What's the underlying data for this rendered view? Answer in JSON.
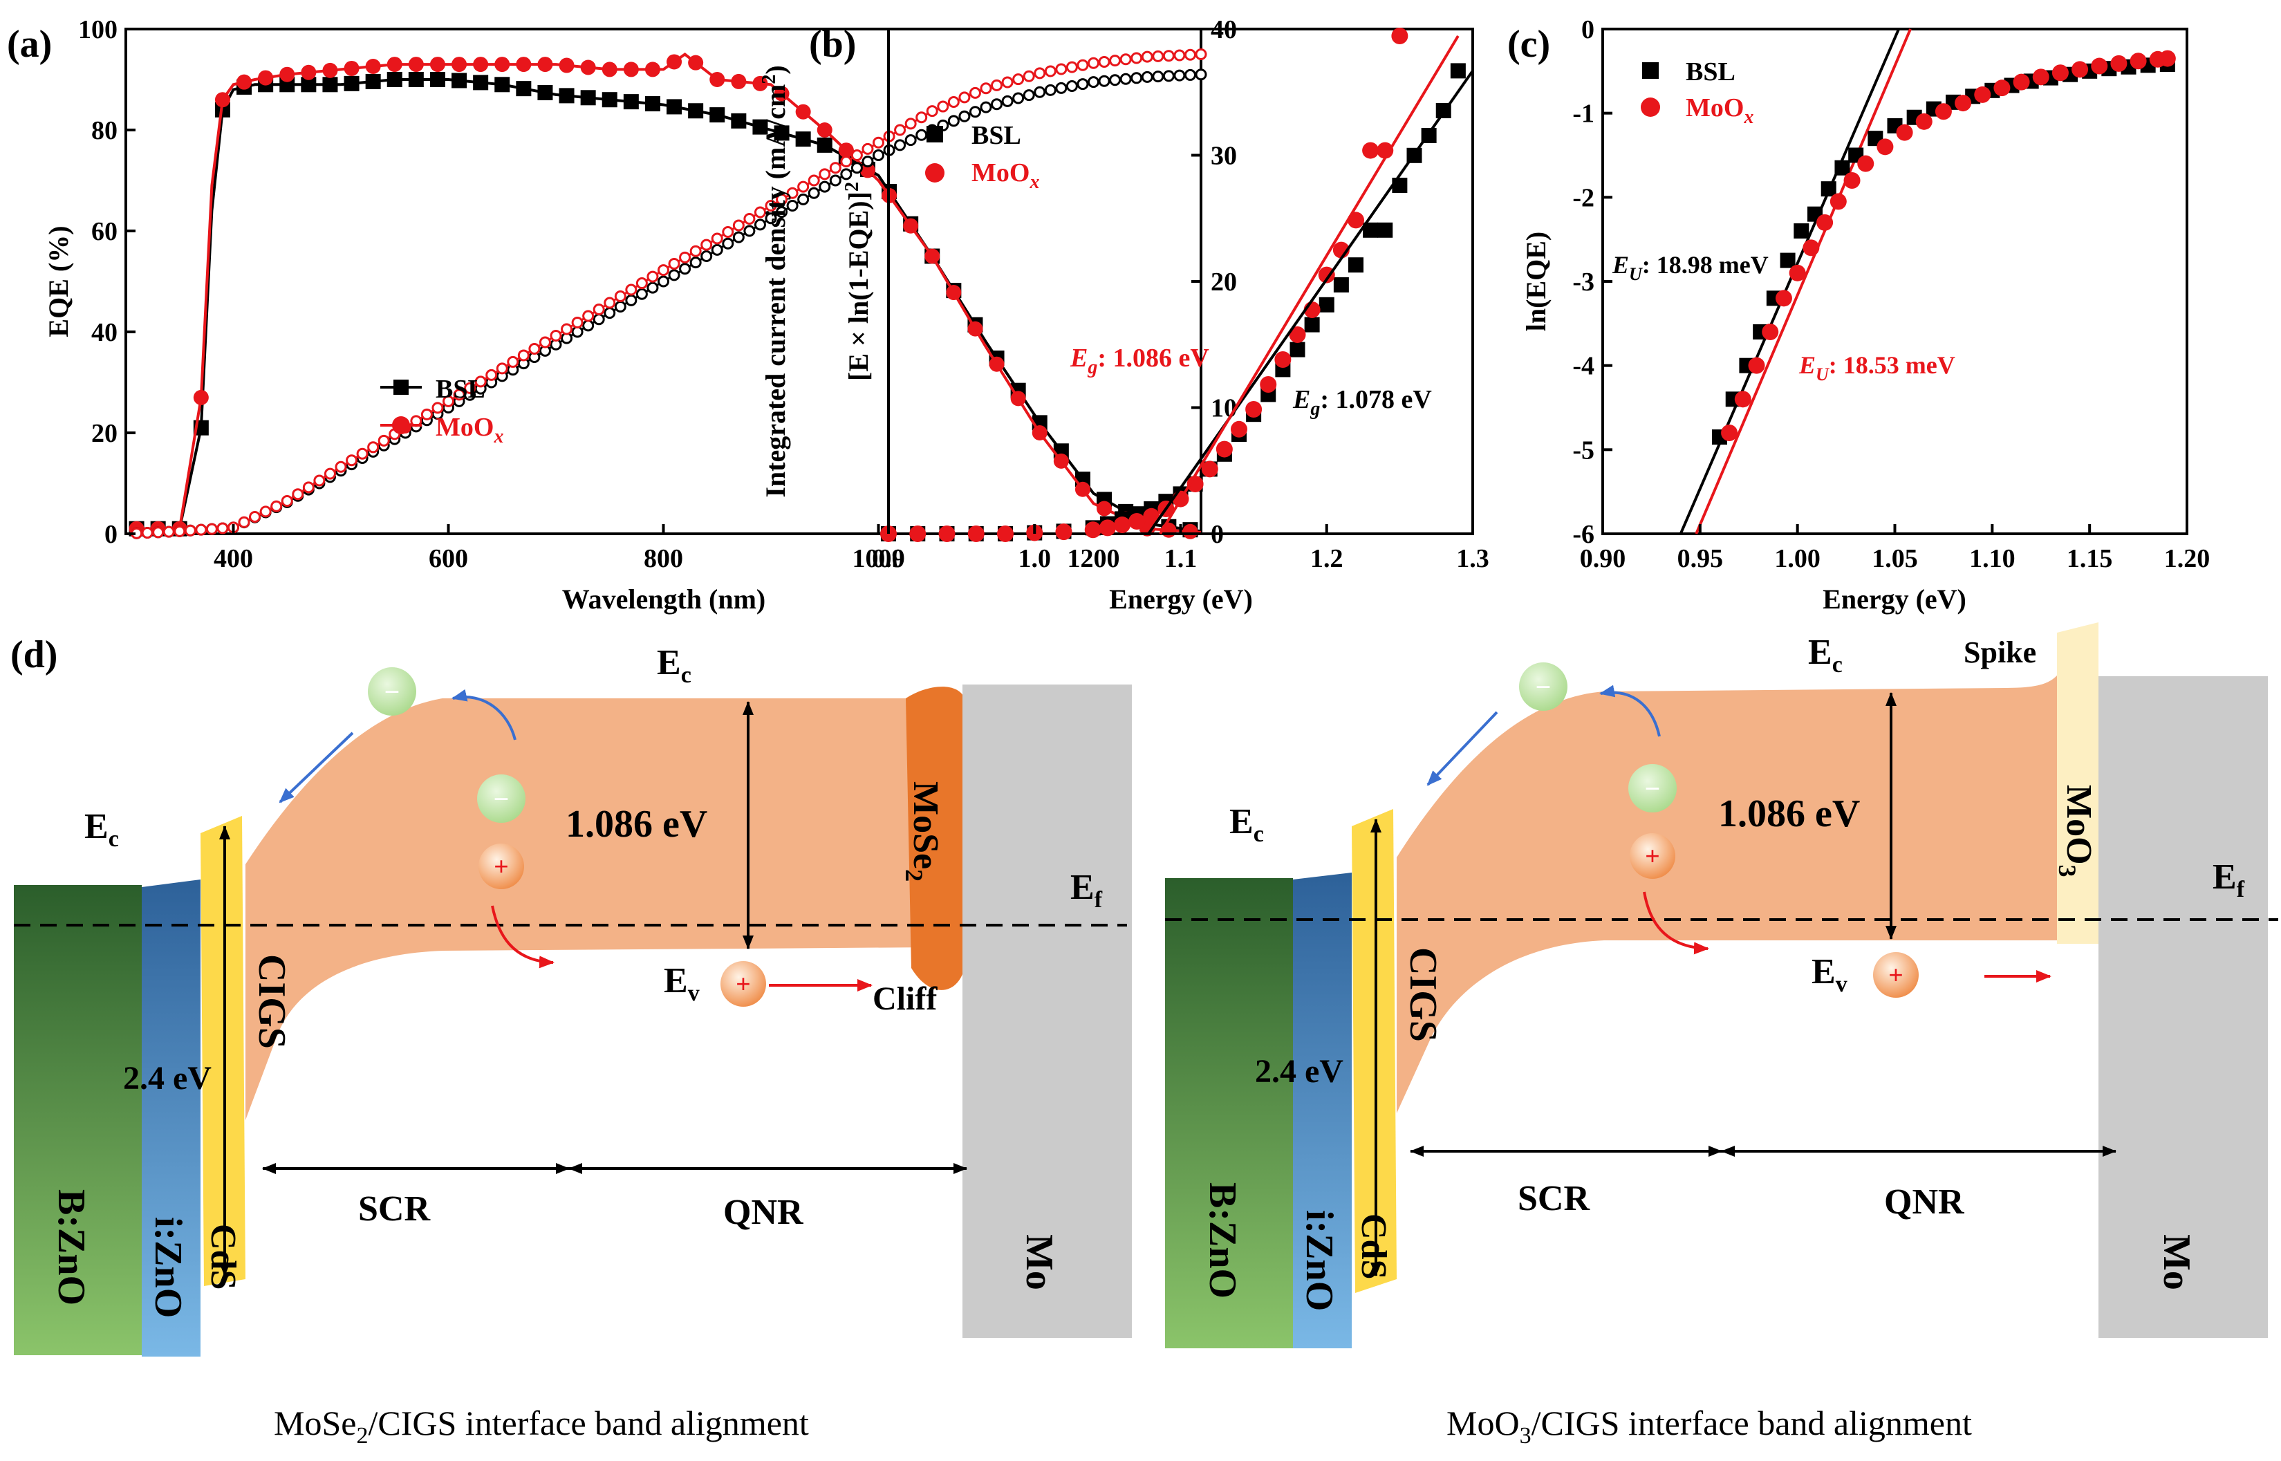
{
  "chart_data": [
    {
      "type": "scatter",
      "panel": "(a)",
      "xlabel": "Wavelength (nm)",
      "ylabel": "EQE (%)",
      "ylabel_right": "Integrated current density (mA/cm",
      "ylabel_right_sup": "2",
      "ylabel_right_close": ")",
      "xlim": [
        300,
        1300
      ],
      "ylim": [
        0,
        100
      ],
      "ylim_right": [
        0,
        40
      ],
      "xticks": [
        400,
        600,
        800,
        1000,
        1200
      ],
      "yticks": [
        0,
        20,
        40,
        60,
        80,
        100
      ],
      "yticks_right": [
        0,
        10,
        20,
        30,
        40
      ],
      "legend": [
        {
          "name": "BSL",
          "color": "#000000",
          "marker": "square"
        },
        {
          "name": "MoO",
          "sub": "x",
          "color": "#e8161b",
          "marker": "circle"
        }
      ],
      "series": [
        {
          "name": "BSL",
          "axis": "left",
          "x": [
            310,
            330,
            350,
            370,
            380,
            390,
            400,
            420,
            450,
            500,
            550,
            600,
            650,
            700,
            750,
            800,
            850,
            900,
            950,
            1000,
            1050,
            1100,
            1150,
            1200,
            1250,
            1300
          ],
          "values": [
            1,
            1,
            1,
            21,
            64,
            84,
            88,
            89,
            89,
            89,
            90,
            90,
            89,
            87,
            86,
            85,
            83,
            80,
            77,
            71,
            55,
            38,
            22,
            8,
            2,
            0.5
          ]
        },
        {
          "name": "MoO_x",
          "axis": "left",
          "x": [
            310,
            330,
            350,
            370,
            380,
            390,
            400,
            420,
            450,
            500,
            550,
            600,
            650,
            700,
            750,
            800,
            820,
            850,
            900,
            950,
            1000,
            1050,
            1100,
            1150,
            1200,
            1250,
            1300
          ],
          "values": [
            1,
            1,
            1,
            27,
            69,
            86,
            89,
            90,
            91,
            92,
            93,
            93,
            93,
            93,
            92,
            92,
            95,
            90,
            89,
            80,
            70,
            55,
            37,
            20,
            6,
            1,
            0.3
          ]
        },
        {
          "name": "BSL integrated",
          "axis": "right",
          "x": [
            300,
            350,
            400,
            450,
            500,
            550,
            600,
            650,
            700,
            750,
            800,
            850,
            900,
            950,
            1000,
            1050,
            1100,
            1150,
            1200,
            1250,
            1300
          ],
          "values": [
            0,
            0.2,
            0.5,
            2.5,
            5,
            7.5,
            10,
            12.5,
            15,
            17.5,
            20,
            22.5,
            25,
            27.5,
            30,
            32,
            33.8,
            35,
            35.8,
            36.2,
            36.4
          ]
        },
        {
          "name": "MoO_x integrated",
          "axis": "right",
          "x": [
            300,
            350,
            400,
            450,
            500,
            550,
            600,
            650,
            700,
            750,
            800,
            850,
            900,
            950,
            1000,
            1050,
            1100,
            1150,
            1200,
            1250,
            1300
          ],
          "values": [
            0,
            0.2,
            0.5,
            2.6,
            5.3,
            7.9,
            10.5,
            13.1,
            15.7,
            18.3,
            20.9,
            23.4,
            26,
            28.5,
            31,
            33.5,
            35.3,
            36.5,
            37.3,
            37.8,
            38
          ]
        }
      ]
    },
    {
      "type": "scatter",
      "panel": "(b)",
      "xlabel": "Energy (eV)",
      "ylabel": "[E × ln(1-EQE)]",
      "ylabel_sup": "2",
      "xlim": [
        0.9,
        1.3
      ],
      "ylim": [
        0,
        1
      ],
      "xticks": [
        0.9,
        1.0,
        1.1,
        1.2,
        1.3
      ],
      "legend": [
        {
          "name": "BSL",
          "color": "#000000",
          "marker": "square"
        },
        {
          "name": "MoO",
          "sub": "x",
          "color": "#e8161b",
          "marker": "circle"
        }
      ],
      "annotations": [
        {
          "text": "E",
          "sub": "g",
          "rest": ": 1.086 eV",
          "color": "#e8161b"
        },
        {
          "text": "E",
          "sub": "g",
          "rest": ": 1.078 eV",
          "color": "#000000"
        }
      ],
      "fit_lines": [
        {
          "name": "BSL fit",
          "x": [
            1.078,
            1.3
          ],
          "y": [
            0,
            0.93
          ]
        },
        {
          "name": "MoO_x fit",
          "x": [
            1.086,
            1.29
          ],
          "y": [
            0,
            1.0
          ]
        }
      ],
      "series": [
        {
          "name": "BSL",
          "x": [
            0.9,
            0.92,
            0.94,
            0.96,
            0.98,
            1.0,
            1.02,
            1.04,
            1.05,
            1.06,
            1.07,
            1.08,
            1.09,
            1.1,
            1.11,
            1.12,
            1.13,
            1.14,
            1.15,
            1.16,
            1.17,
            1.18,
            1.19,
            1.2,
            1.21,
            1.22,
            1.23,
            1.24,
            1.25,
            1.26,
            1.27,
            1.28,
            1.29
          ],
          "values": [
            0,
            0,
            0,
            0,
            0,
            0.002,
            0.005,
            0.012,
            0.02,
            0.03,
            0.04,
            0.05,
            0.065,
            0.08,
            0.1,
            0.13,
            0.16,
            0.2,
            0.24,
            0.28,
            0.33,
            0.37,
            0.42,
            0.46,
            0.5,
            0.54,
            0.61,
            0.61,
            0.7,
            0.76,
            0.8,
            0.85,
            0.93
          ]
        },
        {
          "name": "MoO_x",
          "x": [
            0.9,
            0.92,
            0.94,
            0.96,
            0.98,
            1.0,
            1.02,
            1.04,
            1.05,
            1.06,
            1.07,
            1.08,
            1.09,
            1.1,
            1.11,
            1.12,
            1.13,
            1.14,
            1.15,
            1.16,
            1.17,
            1.18,
            1.19,
            1.2,
            1.21,
            1.22,
            1.23,
            1.24,
            1.25
          ],
          "values": [
            0,
            0,
            0,
            0,
            0,
            0.002,
            0.004,
            0.008,
            0.012,
            0.018,
            0.025,
            0.035,
            0.05,
            0.07,
            0.1,
            0.13,
            0.17,
            0.21,
            0.25,
            0.3,
            0.35,
            0.4,
            0.45,
            0.52,
            0.57,
            0.63,
            0.77,
            0.77,
            1.0
          ]
        }
      ]
    },
    {
      "type": "scatter",
      "panel": "(c)",
      "xlabel": "Energy (eV)",
      "ylabel": "ln(EQE)",
      "xlim": [
        0.9,
        1.2
      ],
      "ylim": [
        -6,
        0
      ],
      "xticks": [
        0.9,
        0.95,
        1.0,
        1.05,
        1.1,
        1.15,
        1.2
      ],
      "yticks": [
        -6,
        -5,
        -4,
        -3,
        -2,
        -1,
        0
      ],
      "legend": [
        {
          "name": "BSL",
          "color": "#000000",
          "marker": "square"
        },
        {
          "name": "MoO",
          "sub": "x",
          "color": "#e8161b",
          "marker": "circle"
        }
      ],
      "annotations": [
        {
          "text": "E",
          "sub": "U",
          "rest": ": 18.98 meV",
          "color": "#000000"
        },
        {
          "text": "E",
          "sub": "U",
          "rest": ": 18.53 meV",
          "color": "#e8161b"
        }
      ],
      "fit_lines": [
        {
          "name": "BSL fit",
          "x": [
            0.94,
            1.052
          ],
          "y": [
            -6,
            0
          ]
        },
        {
          "name": "MoO_x fit",
          "x": [
            0.948,
            1.058
          ],
          "y": [
            -6,
            0
          ]
        }
      ],
      "series": [
        {
          "name": "BSL",
          "x": [
            0.96,
            0.967,
            0.974,
            0.981,
            0.988,
            0.995,
            1.002,
            1.009,
            1.016,
            1.023,
            1.03,
            1.04,
            1.05,
            1.06,
            1.07,
            1.08,
            1.09,
            1.1,
            1.11,
            1.12,
            1.13,
            1.14,
            1.15,
            1.16,
            1.17,
            1.18,
            1.19
          ],
          "values": [
            -4.85,
            -4.4,
            -4.0,
            -3.6,
            -3.2,
            -2.75,
            -2.4,
            -2.2,
            -1.9,
            -1.65,
            -1.5,
            -1.3,
            -1.15,
            -1.05,
            -0.95,
            -0.87,
            -0.8,
            -0.73,
            -0.67,
            -0.62,
            -0.58,
            -0.54,
            -0.5,
            -0.47,
            -0.45,
            -0.43,
            -0.42
          ]
        },
        {
          "name": "MoO_x",
          "x": [
            0.965,
            0.972,
            0.979,
            0.986,
            0.993,
            1.0,
            1.007,
            1.014,
            1.021,
            1.028,
            1.035,
            1.045,
            1.055,
            1.065,
            1.075,
            1.085,
            1.095,
            1.105,
            1.115,
            1.125,
            1.135,
            1.145,
            1.155,
            1.165,
            1.175,
            1.185,
            1.19
          ],
          "values": [
            -4.8,
            -4.4,
            -4.0,
            -3.6,
            -3.2,
            -2.9,
            -2.6,
            -2.3,
            -2.05,
            -1.8,
            -1.6,
            -1.4,
            -1.23,
            -1.1,
            -0.98,
            -0.88,
            -0.78,
            -0.7,
            -0.63,
            -0.57,
            -0.52,
            -0.48,
            -0.44,
            -0.41,
            -0.38,
            -0.36,
            -0.35
          ]
        }
      ]
    }
  ],
  "panels": {
    "a": "(a)",
    "b": "(b)",
    "c": "(c)",
    "d": "(d)"
  },
  "diagram": {
    "left": {
      "ec_left": "E",
      "ec_left_sub": "c",
      "ec_top": "E",
      "ec_top_sub": "c",
      "ef": "E",
      "ef_sub": "f",
      "ev": "E",
      "ev_sub": "v",
      "gap": "1.086 eV",
      "window_gap": "2.4 eV",
      "mose2": "MoSe",
      "mose2_sub": "2",
      "cliff": "Cliff",
      "cigs": "CIGS",
      "cds": "CdS",
      "izno": "i:ZnO",
      "bzno": "B:ZnO",
      "mo": "Mo",
      "scr": "SCR",
      "qnr": "QNR",
      "minus": "−",
      "plus": "+",
      "caption_a": "MoSe",
      "caption_sub": "2",
      "caption_b": "/CIGS interface band alignment"
    },
    "right": {
      "ec_left": "E",
      "ec_left_sub": "c",
      "ec_top": "E",
      "ec_top_sub": "c",
      "ef": "E",
      "ef_sub": "f",
      "ev": "E",
      "ev_sub": "v",
      "gap": "1.086 eV",
      "window_gap": "2.4 eV",
      "moo3": "MoO",
      "moo3_sub": "3",
      "spike": "Spike",
      "cigs": "CIGS",
      "cds": "CdS",
      "izno": "i:ZnO",
      "bzno": "B:ZnO",
      "mo": "Mo",
      "scr": "SCR",
      "qnr": "QNR",
      "minus": "−",
      "plus": "+",
      "caption_a": "MoO",
      "caption_sub": "3",
      "caption_b": "/CIGS interface band alignment"
    }
  },
  "colors": {
    "bsl": "#000000",
    "moox": "#e8161b",
    "band": "#f3b287",
    "cds": "#fdd94a",
    "izno_top": "#2d6199",
    "izno_bot": "#7ab8e6",
    "bzno_top": "#2b5e2b",
    "bzno_bot": "#8bc46a",
    "mo": "#cbcbcb",
    "mose2": "#e8762a",
    "moo3": "#fdefc2"
  }
}
